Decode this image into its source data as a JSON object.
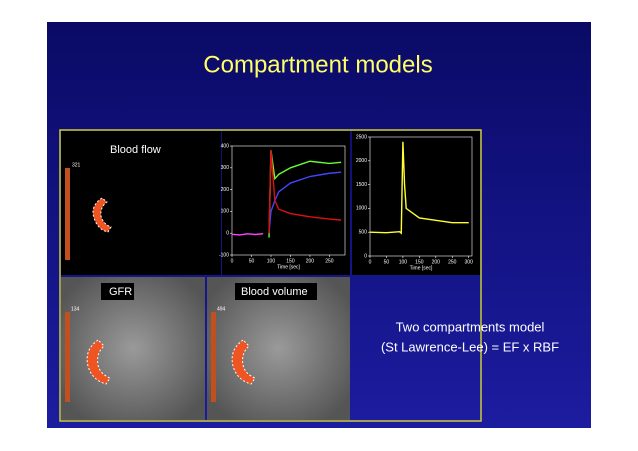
{
  "slide": {
    "title": "Compartment models",
    "panels": [
      {
        "label": "Blood flow",
        "scale_max": "321"
      },
      {
        "label": "GFR",
        "scale_max": "134"
      },
      {
        "label": "Blood volume",
        "scale_max": "494"
      }
    ],
    "caption": [
      "Two compartments model",
      "(St Lawrence-Lee) = EF x RBF"
    ]
  },
  "chart_data": [
    {
      "type": "line",
      "x_label": "Time [sec]",
      "x": [
        0,
        20,
        40,
        60,
        80,
        90,
        95,
        100,
        110,
        120,
        150,
        200,
        250,
        280
      ],
      "xlim": [
        0,
        290
      ],
      "ylim": [
        -100,
        400
      ],
      "xticks": [
        0,
        50,
        100,
        150,
        200,
        250
      ],
      "yticks": [
        -100,
        0,
        100,
        200,
        300,
        400
      ],
      "series": [
        {
          "color": "#ff44ff",
          "values": [
            -5,
            -8,
            -3,
            -6,
            -2,
            null,
            null,
            null,
            null,
            null,
            null,
            null,
            null,
            null
          ]
        },
        {
          "color": "#66ff33",
          "values": [
            null,
            null,
            null,
            null,
            null,
            null,
            -20,
            380,
            250,
            270,
            300,
            330,
            320,
            325
          ]
        },
        {
          "color": "#4444ff",
          "values": [
            null,
            null,
            null,
            null,
            null,
            null,
            0,
            100,
            150,
            190,
            230,
            260,
            275,
            280
          ]
        },
        {
          "color": "#dd1111",
          "values": [
            null,
            null,
            null,
            null,
            null,
            null,
            0,
            380,
            150,
            110,
            90,
            75,
            65,
            60
          ]
        }
      ]
    },
    {
      "type": "line",
      "x_label": "Time [sec]",
      "x": [
        0,
        50,
        90,
        95,
        100,
        105,
        110,
        150,
        200,
        250,
        300
      ],
      "xlim": [
        0,
        310
      ],
      "ylim": [
        0,
        2500
      ],
      "xticks": [
        0,
        50,
        100,
        150,
        200,
        250,
        300
      ],
      "yticks": [
        0,
        500,
        1000,
        1500,
        2000,
        2500
      ],
      "series": [
        {
          "color": "#ffff33",
          "values": [
            500,
            490,
            510,
            480,
            2400,
            1500,
            1000,
            800,
            750,
            700,
            700
          ]
        }
      ]
    }
  ]
}
